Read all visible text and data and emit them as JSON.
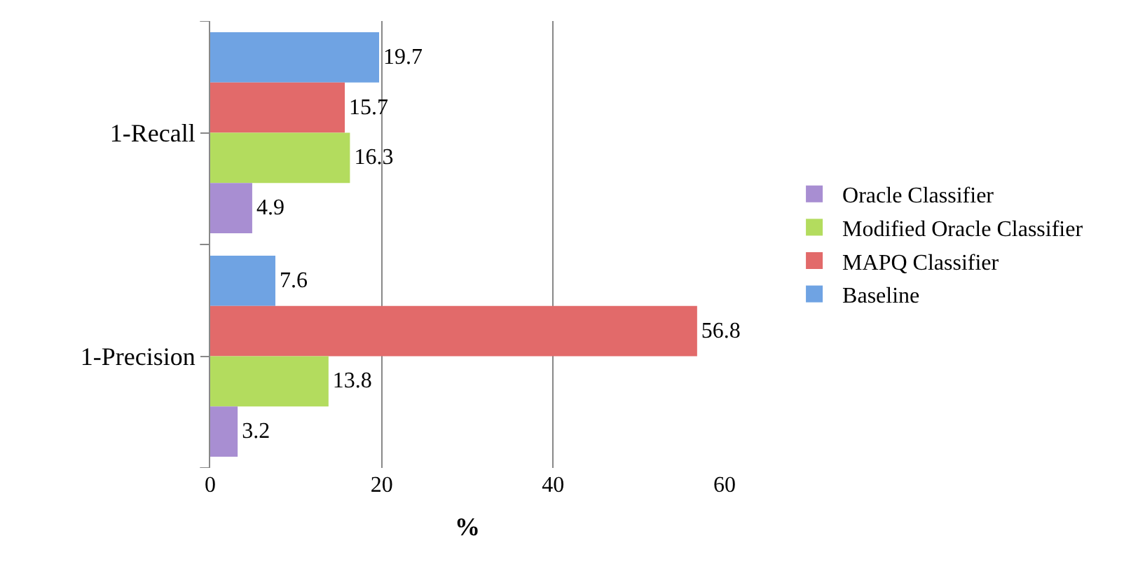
{
  "chart_data": {
    "type": "bar",
    "orientation": "horizontal",
    "xlabel": "%",
    "categories": [
      "1-Recall",
      "1-Precision"
    ],
    "series": [
      {
        "name": "Baseline",
        "color": "#6fa3e3",
        "values": [
          19.7,
          7.6
        ]
      },
      {
        "name": "MAPQ Classifier",
        "color": "#e26a6a",
        "values": [
          15.7,
          56.8
        ]
      },
      {
        "name": "Modified Oracle Classifier",
        "color": "#b3dc5e",
        "values": [
          16.3,
          13.8
        ]
      },
      {
        "name": "Oracle Classifier",
        "color": "#a88ed2",
        "values": [
          4.9,
          3.2
        ]
      }
    ],
    "xlim": [
      0,
      60
    ],
    "xticks": [
      0,
      20,
      40,
      60
    ],
    "grid": "x",
    "legend": "right",
    "data_labels": true
  }
}
